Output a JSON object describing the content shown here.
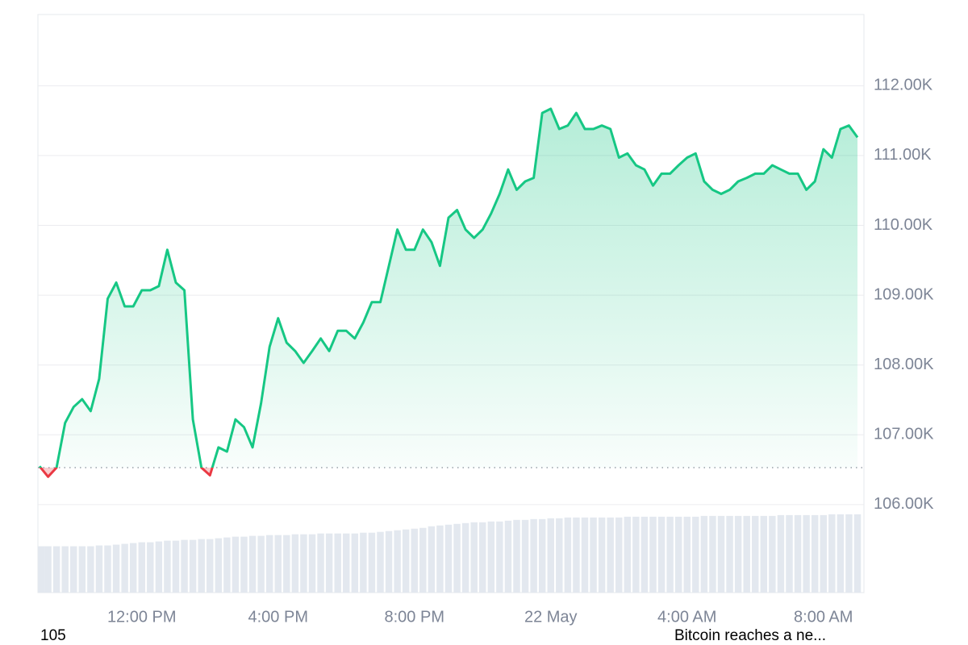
{
  "chart_data": {
    "type": "line",
    "categories": [
      null,
      null,
      null,
      null,
      null,
      null,
      null,
      null,
      null,
      null,
      null,
      null,
      "12:00 PM",
      null,
      null,
      null,
      null,
      null,
      null,
      null,
      null,
      null,
      null,
      null,
      null,
      null,
      null,
      null,
      "4:00 PM",
      null,
      null,
      null,
      null,
      null,
      null,
      null,
      null,
      null,
      null,
      null,
      null,
      null,
      null,
      null,
      "8:00 PM",
      null,
      null,
      null,
      null,
      null,
      null,
      null,
      null,
      null,
      null,
      null,
      null,
      null,
      null,
      null,
      "22 May",
      null,
      null,
      null,
      null,
      null,
      null,
      null,
      null,
      null,
      null,
      null,
      null,
      null,
      null,
      null,
      "4:00 AM",
      null,
      null,
      null,
      null,
      null,
      null,
      null,
      null,
      null,
      null,
      null,
      null,
      null,
      null,
      null,
      "8:00 AM",
      null,
      null,
      null,
      null
    ],
    "values": [
      106.55,
      106.4,
      106.53,
      107.17,
      107.4,
      107.51,
      107.34,
      107.8,
      108.95,
      109.18,
      108.84,
      108.84,
      109.07,
      109.07,
      109.13,
      109.65,
      109.18,
      109.07,
      107.22,
      106.53,
      106.42,
      106.82,
      106.76,
      107.22,
      107.11,
      106.82,
      107.45,
      108.26,
      108.67,
      108.32,
      108.2,
      108.03,
      108.2,
      108.38,
      108.2,
      108.49,
      108.49,
      108.38,
      108.61,
      108.9,
      108.9,
      109.42,
      109.94,
      109.65,
      109.65,
      109.94,
      109.76,
      109.42,
      110.11,
      110.22,
      109.94,
      109.82,
      109.94,
      110.17,
      110.45,
      110.8,
      110.51,
      110.63,
      110.68,
      111.61,
      111.67,
      111.38,
      111.43,
      111.61,
      111.38,
      111.38,
      111.43,
      111.38,
      110.97,
      111.03,
      110.86,
      110.8,
      110.57,
      110.74,
      110.74,
      110.86,
      110.97,
      111.03,
      110.63,
      110.51,
      110.45,
      110.51,
      110.63,
      110.68,
      110.74,
      110.74,
      110.86,
      110.8,
      110.74,
      110.74,
      110.51,
      110.63,
      111.09,
      110.97,
      111.38,
      111.43,
      111.26
    ],
    "volume": [
      58,
      58,
      58,
      58,
      58,
      58,
      58,
      59,
      59,
      60,
      61,
      62,
      63,
      63,
      64,
      65,
      65,
      66,
      66,
      67,
      67,
      68,
      69,
      70,
      70,
      71,
      71,
      72,
      72,
      72,
      73,
      73,
      73,
      74,
      74,
      74,
      74,
      74,
      75,
      75,
      76,
      77,
      78,
      79,
      80,
      81,
      83,
      84,
      85,
      86,
      87,
      88,
      88,
      89,
      89,
      90,
      91,
      91,
      92,
      92,
      93,
      93,
      94,
      94,
      94,
      94,
      94,
      94,
      94,
      95,
      95,
      95,
      95,
      95,
      95,
      95,
      95,
      95,
      96,
      96,
      96,
      96,
      96,
      96,
      96,
      96,
      96,
      97,
      97,
      97,
      97,
      97,
      97,
      98,
      98,
      98,
      98
    ],
    "volume_lim": [
      0,
      110
    ],
    "baseline": 106.53,
    "ylim": [
      104.74,
      113.02
    ],
    "yticks": [
      {
        "value": 106,
        "label": "106.00K"
      },
      {
        "value": 107,
        "label": "107.00K"
      },
      {
        "value": 108,
        "label": "108.00K"
      },
      {
        "value": 109,
        "label": "109.00K"
      },
      {
        "value": 110,
        "label": "110.00K"
      },
      {
        "value": 111,
        "label": "111.00K"
      },
      {
        "value": 112,
        "label": "112.00K"
      }
    ],
    "grid": true,
    "color": "#16c784",
    "down_color": "#ea3943",
    "volume_color": "#e3e8ef",
    "annotations": [
      "105",
      "Bitcoin reaches a ne..."
    ]
  }
}
